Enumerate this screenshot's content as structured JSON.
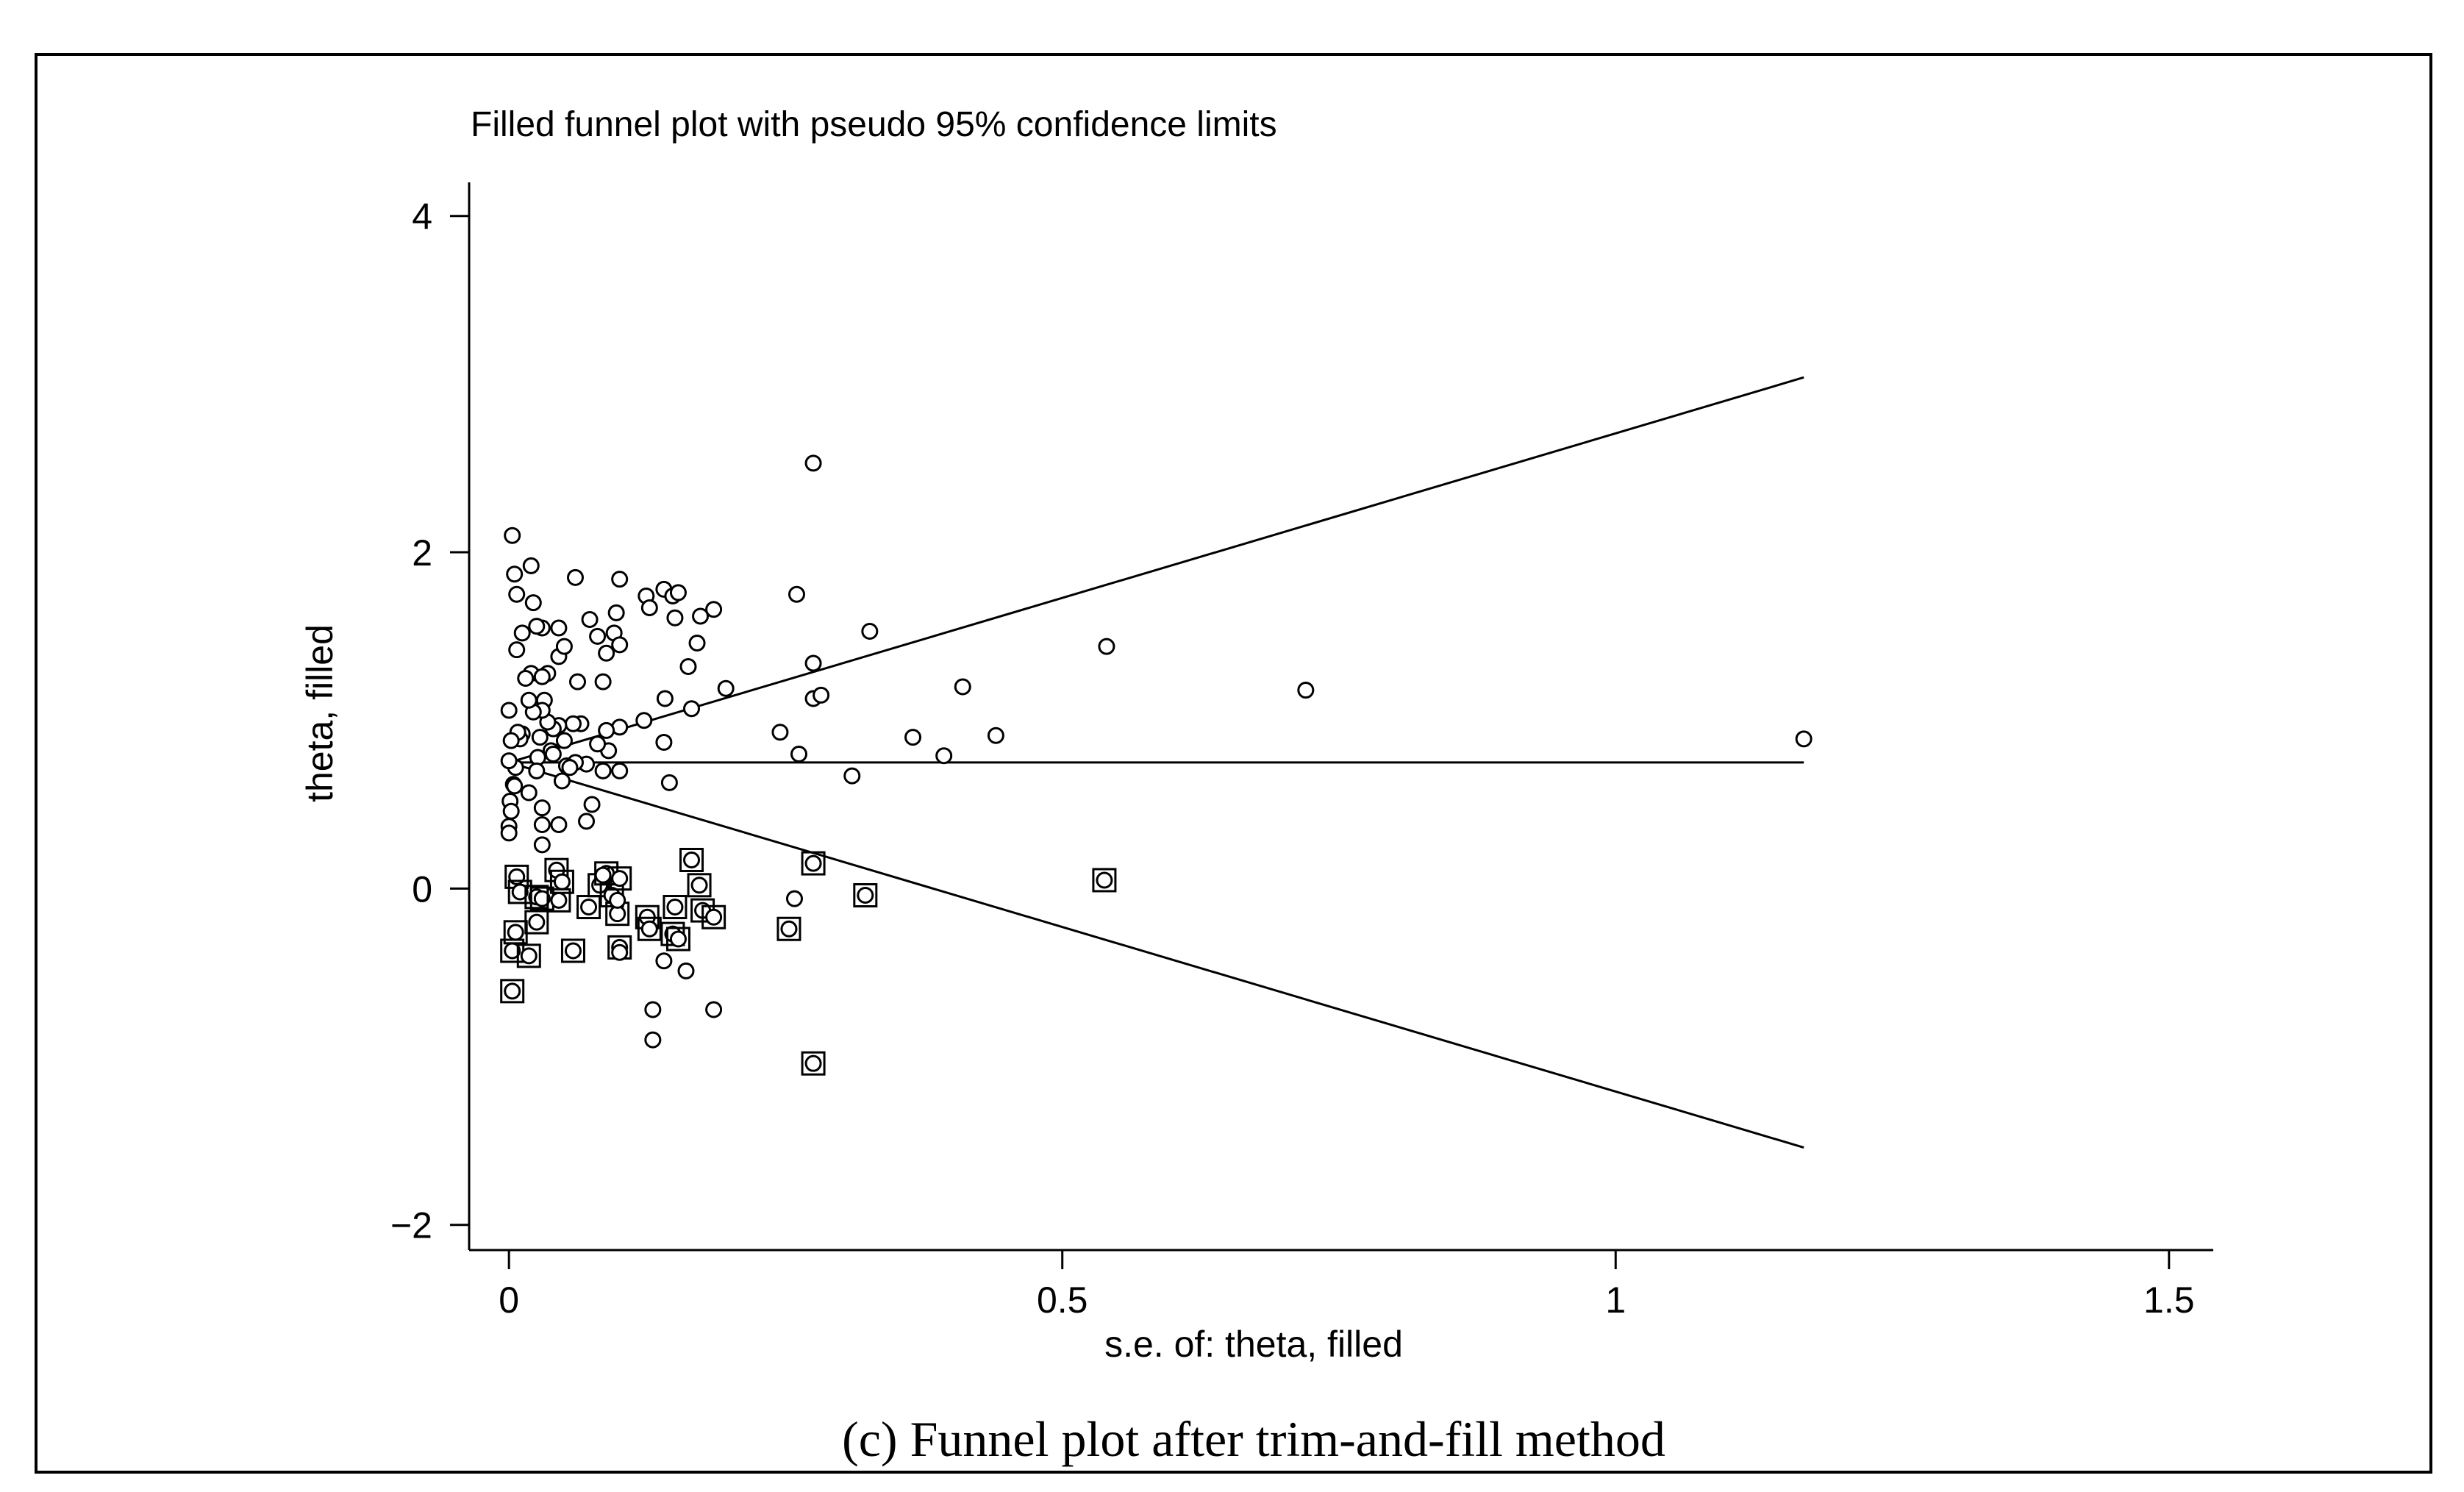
{
  "chart_data": {
    "type": "scatter",
    "title": "Filled funnel plot with pseudo 95% confidence limits",
    "xlabel": "s.e. of: theta, filled",
    "ylabel": "theta, filled",
    "caption": "(c) Funnel plot after trim-and-fill method",
    "xlim": [
      -0.036,
      1.54
    ],
    "ylim": [
      -2.15,
      4.2
    ],
    "xticks": [
      0,
      0.5,
      1,
      1.5
    ],
    "xtick_labels": [
      "0",
      "0.5",
      "1",
      "1.5"
    ],
    "yticks": [
      4,
      2,
      0,
      -2
    ],
    "ytick_labels": [
      "4",
      "2",
      "0",
      "−2"
    ],
    "pooled_estimate": 0.75,
    "x_max_line": 1.17,
    "upper_limit_end": 3.04,
    "lower_limit_end": -1.54,
    "observed_points": [
      [
        0.003,
        2.1
      ],
      [
        0.005,
        1.87
      ],
      [
        0.02,
        1.92
      ],
      [
        0.007,
        1.75
      ],
      [
        0.022,
        1.7
      ],
      [
        0.012,
        1.52
      ],
      [
        0.007,
        1.42
      ],
      [
        0.03,
        1.55
      ],
      [
        0.025,
        1.56
      ],
      [
        0.02,
        1.28
      ],
      [
        0.035,
        1.28
      ],
      [
        0.03,
        1.26
      ],
      [
        0.045,
        1.38
      ],
      [
        0.05,
        1.44
      ],
      [
        0.045,
        1.55
      ],
      [
        0.06,
        1.85
      ],
      [
        0.073,
        1.6
      ],
      [
        0.08,
        1.5
      ],
      [
        0.088,
        1.4
      ],
      [
        0.095,
        1.52
      ],
      [
        0.097,
        1.64
      ],
      [
        0.1,
        1.84
      ],
      [
        0.1,
        1.45
      ],
      [
        0.124,
        1.74
      ],
      [
        0.127,
        1.67
      ],
      [
        0.14,
        1.78
      ],
      [
        0.148,
        1.74
      ],
      [
        0.153,
        1.76
      ],
      [
        0.15,
        1.61
      ],
      [
        0.173,
        1.62
      ],
      [
        0.185,
        1.66
      ],
      [
        0.17,
        1.46
      ],
      [
        0.162,
        1.32
      ],
      [
        0.26,
        1.75
      ],
      [
        0.275,
        2.53
      ],
      [
        0.326,
        1.53
      ],
      [
        0.275,
        1.34
      ],
      [
        0.196,
        1.19
      ],
      [
        0.141,
        1.13
      ],
      [
        0.165,
        1.07
      ],
      [
        0.122,
        1.0
      ],
      [
        0.1,
        0.96
      ],
      [
        0.09,
        0.82
      ],
      [
        0.088,
        0.94
      ],
      [
        0.08,
        0.86
      ],
      [
        0.085,
        1.23
      ],
      [
        0.062,
        1.23
      ],
      [
        0.065,
        0.98
      ],
      [
        0.07,
        0.74
      ],
      [
        0.058,
        0.98
      ],
      [
        0.05,
        0.88
      ],
      [
        0.045,
        0.97
      ],
      [
        0.04,
        0.95
      ],
      [
        0.038,
        0.82
      ],
      [
        0.035,
        0.99
      ],
      [
        0.032,
        1.12
      ],
      [
        0.03,
        1.06
      ],
      [
        0.028,
        0.9
      ],
      [
        0.026,
        0.78
      ],
      [
        0.022,
        1.05
      ],
      [
        0.018,
        1.12
      ],
      [
        0.015,
        1.25
      ],
      [
        0.012,
        0.92
      ],
      [
        0.01,
        0.89
      ],
      [
        0.008,
        0.93
      ],
      [
        0.006,
        0.72
      ],
      [
        0.004,
        0.62
      ],
      [
        0.002,
        0.88
      ],
      [
        0.0,
        0.76
      ],
      [
        0.0,
        1.06
      ],
      [
        0.001,
        0.52
      ],
      [
        0.002,
        0.46
      ],
      [
        0.0,
        0.37
      ],
      [
        0.0,
        0.33
      ],
      [
        0.005,
        0.61
      ],
      [
        0.018,
        0.57
      ],
      [
        0.03,
        0.48
      ],
      [
        0.045,
        0.38
      ],
      [
        0.03,
        0.38
      ],
      [
        0.03,
        0.26
      ],
      [
        0.048,
        0.64
      ],
      [
        0.07,
        0.4
      ],
      [
        0.075,
        0.5
      ],
      [
        0.085,
        0.7
      ],
      [
        0.1,
        0.7
      ],
      [
        0.06,
        0.75
      ],
      [
        0.052,
        0.73
      ],
      [
        0.025,
        0.7
      ],
      [
        0.04,
        0.8
      ],
      [
        0.055,
        0.72
      ],
      [
        0.14,
        0.87
      ],
      [
        0.145,
        0.63
      ],
      [
        0.245,
        0.93
      ],
      [
        0.262,
        0.8
      ],
      [
        0.275,
        1.13
      ],
      [
        0.282,
        1.15
      ],
      [
        0.31,
        0.67
      ],
      [
        0.365,
        0.9
      ],
      [
        0.393,
        0.79
      ],
      [
        0.41,
        1.2
      ],
      [
        0.44,
        0.91
      ],
      [
        0.54,
        1.44
      ],
      [
        0.72,
        1.18
      ],
      [
        1.17,
        0.89
      ],
      [
        0.13,
        -0.72
      ],
      [
        0.13,
        -0.9
      ],
      [
        0.185,
        -0.72
      ],
      [
        0.16,
        -0.49
      ],
      [
        0.14,
        -0.43
      ],
      [
        0.258,
        -0.06
      ],
      [
        0.1,
        -0.38
      ],
      [
        0.085,
        0.08
      ],
      [
        0.098,
        -0.07
      ]
    ],
    "filled_points": [
      [
        0.007,
        0.07
      ],
      [
        0.01,
        -0.02
      ],
      [
        0.025,
        -0.05
      ],
      [
        0.03,
        -0.06
      ],
      [
        0.025,
        -0.2
      ],
      [
        0.006,
        -0.26
      ],
      [
        0.003,
        -0.37
      ],
      [
        0.018,
        -0.4
      ],
      [
        0.003,
        -0.61
      ],
      [
        0.043,
        0.11
      ],
      [
        0.048,
        0.04
      ],
      [
        0.045,
        -0.07
      ],
      [
        0.058,
        -0.37
      ],
      [
        0.072,
        -0.11
      ],
      [
        0.082,
        0.02
      ],
      [
        0.088,
        0.09
      ],
      [
        0.093,
        -0.04
      ],
      [
        0.098,
        -0.15
      ],
      [
        0.1,
        0.06
      ],
      [
        0.1,
        -0.35
      ],
      [
        0.125,
        -0.17
      ],
      [
        0.127,
        -0.24
      ],
      [
        0.148,
        -0.27
      ],
      [
        0.15,
        -0.11
      ],
      [
        0.153,
        -0.3
      ],
      [
        0.165,
        0.17
      ],
      [
        0.172,
        0.02
      ],
      [
        0.175,
        -0.13
      ],
      [
        0.185,
        -0.17
      ],
      [
        0.253,
        -0.24
      ],
      [
        0.275,
        0.15
      ],
      [
        0.322,
        -0.04
      ],
      [
        0.275,
        -1.04
      ],
      [
        0.538,
        0.05
      ]
    ]
  }
}
